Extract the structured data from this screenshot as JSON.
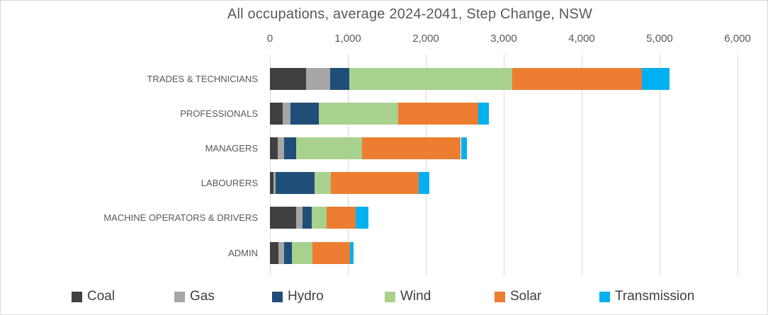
{
  "chart_data": {
    "type": "bar",
    "orientation": "horizontal-stacked",
    "title": "All occupations, average 2024-2041, Step Change, NSW",
    "xlabel": "",
    "ylabel": "",
    "xlim": [
      0,
      6000
    ],
    "grid": true,
    "axis_position": "top",
    "x_ticks": [
      {
        "value": 0,
        "label": "0"
      },
      {
        "value": 1000,
        "label": "1,000"
      },
      {
        "value": 2000,
        "label": "2,000"
      },
      {
        "value": 3000,
        "label": "3,000"
      },
      {
        "value": 4000,
        "label": "4,000"
      },
      {
        "value": 5000,
        "label": "5,000"
      },
      {
        "value": 6000,
        "label": "6,000"
      }
    ],
    "categories": [
      "TRADES & TECHNICIANS",
      "PROFESSIONALS",
      "MANAGERS",
      "LABOURERS",
      "MACHINE OPERATORS & DRIVERS",
      "ADMIN"
    ],
    "series": [
      {
        "name": "Coal",
        "color": "#404040",
        "values": [
          460,
          160,
          100,
          45,
          335,
          105
        ]
      },
      {
        "name": "Gas",
        "color": "#a6a6a6",
        "values": [
          310,
          100,
          80,
          30,
          80,
          75
        ]
      },
      {
        "name": "Hydro",
        "color": "#1f4e79",
        "values": [
          245,
          370,
          160,
          500,
          125,
          100
        ]
      },
      {
        "name": "Wind",
        "color": "#a9d18e",
        "values": [
          2095,
          1015,
          840,
          205,
          190,
          265
        ]
      },
      {
        "name": "Solar",
        "color": "#ed7d31",
        "values": [
          1665,
          1030,
          1270,
          1130,
          370,
          480
        ]
      },
      {
        "name": "Transmission",
        "color": "#00b0f0",
        "values": [
          350,
          135,
          75,
          135,
          165,
          50
        ]
      }
    ],
    "legend_position": "bottom"
  },
  "colors": {
    "title_text": "#595959",
    "axis_text": "#595959",
    "category_text": "#595959",
    "legend_text": "#404040",
    "gridline": "#d9d9d9",
    "chart_border": "#d9d9d9",
    "background": "#ffffff"
  }
}
